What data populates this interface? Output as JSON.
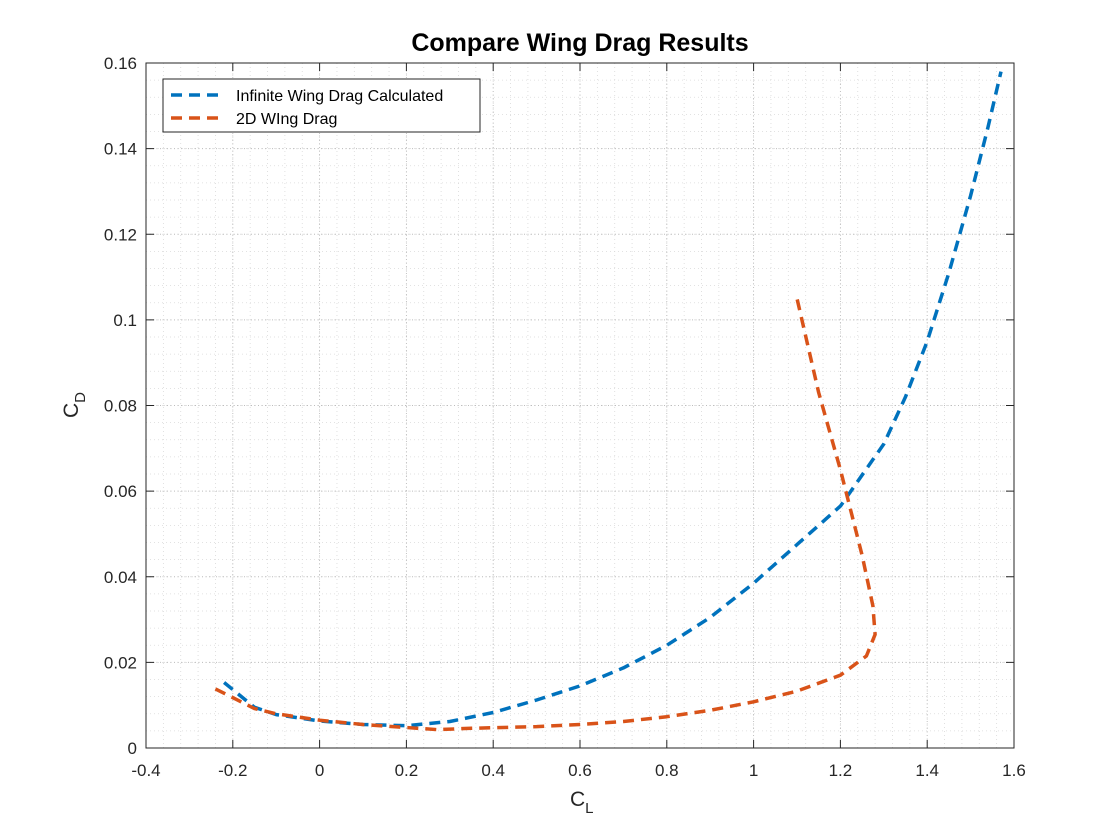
{
  "chart_data": {
    "type": "line",
    "title": "Compare Wing Drag Results",
    "xlabel": "C",
    "xlabel_sub": "L",
    "ylabel": "C",
    "ylabel_sub": "D",
    "xlim": [
      -0.4,
      1.6
    ],
    "ylim": [
      0,
      0.16
    ],
    "xticks": [
      -0.4,
      -0.2,
      0,
      0.2,
      0.4,
      0.6,
      0.8,
      1,
      1.2,
      1.4,
      1.6
    ],
    "xtick_labels": [
      "-0.4",
      "-0.2",
      "0",
      "0.2",
      "0.4",
      "0.6",
      "0.8",
      "1",
      "1.2",
      "1.4",
      "1.6"
    ],
    "yticks": [
      0,
      0.02,
      0.04,
      0.06,
      0.08,
      0.1,
      0.12,
      0.14,
      0.16
    ],
    "ytick_labels": [
      "0",
      "0.02",
      "0.04",
      "0.06",
      "0.08",
      "0.1",
      "0.12",
      "0.14",
      "0.16"
    ],
    "grid": "major and minor, dotted",
    "legend_position": "top-left",
    "series": [
      {
        "name": "Infinite Wing Drag Calculated",
        "color": "#0072BD",
        "style": "dashed",
        "points": [
          [
            -0.22,
            0.0153
          ],
          [
            -0.15,
            0.0095
          ],
          [
            -0.1,
            0.0078
          ],
          [
            0.0,
            0.0063
          ],
          [
            0.1,
            0.0055
          ],
          [
            0.2,
            0.0052
          ],
          [
            0.3,
            0.0062
          ],
          [
            0.4,
            0.0083
          ],
          [
            0.5,
            0.0112
          ],
          [
            0.6,
            0.0145
          ],
          [
            0.7,
            0.0187
          ],
          [
            0.8,
            0.024
          ],
          [
            0.9,
            0.0305
          ],
          [
            1.0,
            0.0385
          ],
          [
            1.1,
            0.0475
          ],
          [
            1.2,
            0.0565
          ],
          [
            1.3,
            0.071
          ],
          [
            1.35,
            0.082
          ],
          [
            1.4,
            0.095
          ],
          [
            1.45,
            0.111
          ],
          [
            1.5,
            0.129
          ],
          [
            1.54,
            0.145
          ],
          [
            1.57,
            0.158
          ]
        ]
      },
      {
        "name": "2D WIng Drag",
        "color": "#D95319",
        "style": "dashed",
        "points": [
          [
            -0.24,
            0.0138
          ],
          [
            -0.15,
            0.0092
          ],
          [
            -0.1,
            0.008
          ],
          [
            0.0,
            0.0065
          ],
          [
            0.1,
            0.0055
          ],
          [
            0.2,
            0.0048
          ],
          [
            0.27,
            0.0043
          ],
          [
            0.35,
            0.0046
          ],
          [
            0.5,
            0.005
          ],
          [
            0.6,
            0.0055
          ],
          [
            0.7,
            0.0062
          ],
          [
            0.8,
            0.0073
          ],
          [
            0.9,
            0.0088
          ],
          [
            1.0,
            0.0108
          ],
          [
            1.1,
            0.0133
          ],
          [
            1.2,
            0.017
          ],
          [
            1.26,
            0.0215
          ],
          [
            1.28,
            0.0265
          ],
          [
            1.275,
            0.0332
          ],
          [
            1.25,
            0.045
          ],
          [
            1.2,
            0.065
          ],
          [
            1.15,
            0.083
          ],
          [
            1.1,
            0.105
          ]
        ]
      }
    ]
  }
}
